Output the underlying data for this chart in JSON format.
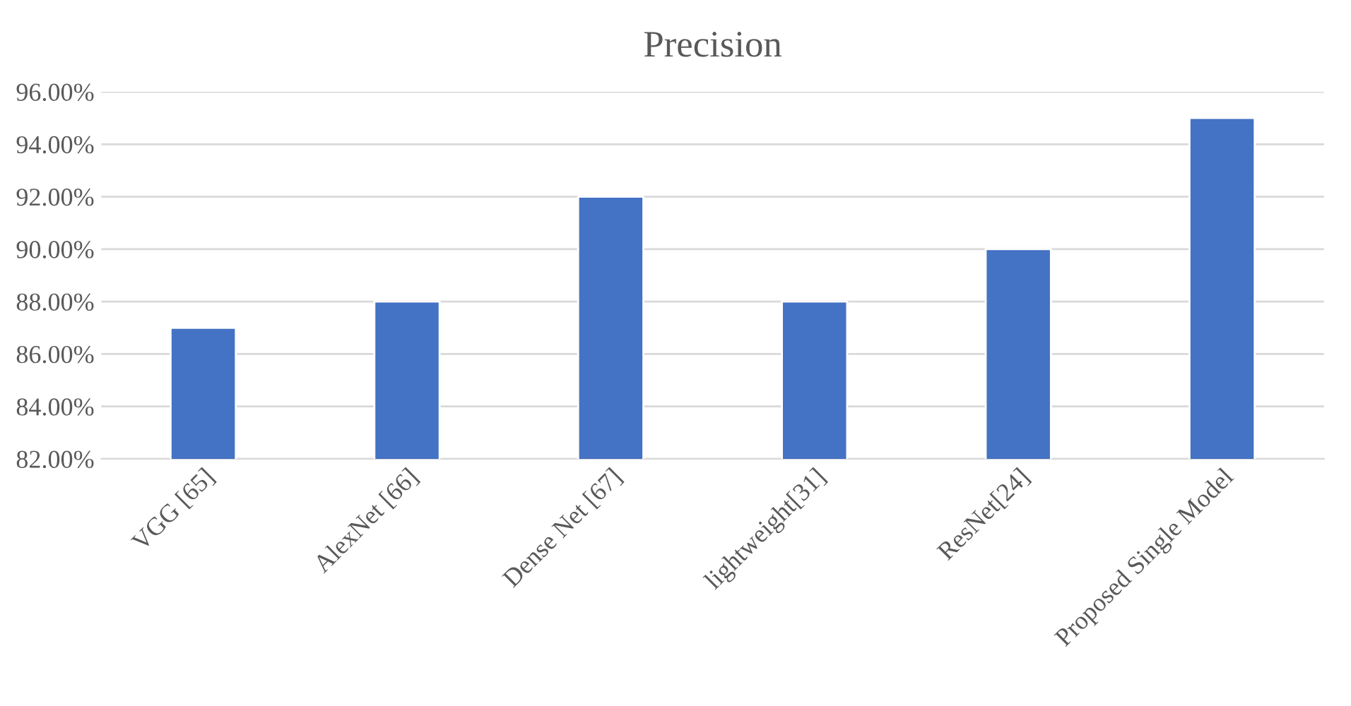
{
  "chart_data": {
    "type": "bar",
    "title": "Precision",
    "categories": [
      "VGG [65]",
      "AlexNet [66]",
      "Dense Net [67]",
      "lightweight[31]",
      "ResNet[24]",
      "Proposed Single Model"
    ],
    "values": [
      87,
      88,
      92,
      88,
      90,
      95
    ],
    "color": "#4472c4",
    "ylim": [
      82,
      96
    ],
    "yticks": [
      {
        "value": 82,
        "label": "82.00%"
      },
      {
        "value": 84,
        "label": "84.00%"
      },
      {
        "value": 86,
        "label": "86.00%"
      },
      {
        "value": 88,
        "label": "88.00%"
      },
      {
        "value": 90,
        "label": "90.00%"
      },
      {
        "value": 92,
        "label": "92.00%"
      },
      {
        "value": 94,
        "label": "94.00%"
      },
      {
        "value": 96,
        "label": "96.00%"
      }
    ],
    "grid": "y",
    "legend": false
  }
}
